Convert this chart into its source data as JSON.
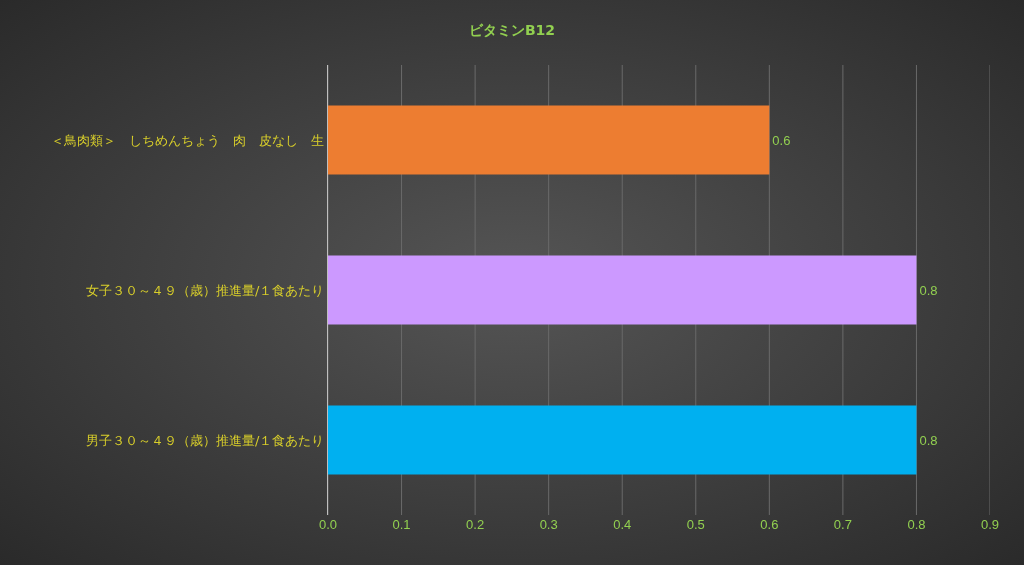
{
  "chart_data": {
    "type": "bar",
    "title": "ビタミンB12",
    "orientation": "horizontal",
    "categories": [
      "＜鳥肉類＞　しちめんちょう　肉　皮なし　生",
      "女子３０～４９（歳）推進量/１食あたり",
      "男子３０～４９（歳）推進量/１食あたり"
    ],
    "values": [
      0.6,
      0.8,
      0.8
    ],
    "colors": [
      "#ed7d31",
      "#cc99ff",
      "#00b0f0"
    ],
    "xlim": [
      0,
      0.9
    ],
    "xticks": [
      {
        "value": 0,
        "label": "0.0"
      },
      0.1,
      0.2,
      0.3,
      0.4,
      0.5,
      0.6,
      0.7,
      0.8,
      0.9
    ],
    "grid": "x",
    "data_labels": true
  }
}
